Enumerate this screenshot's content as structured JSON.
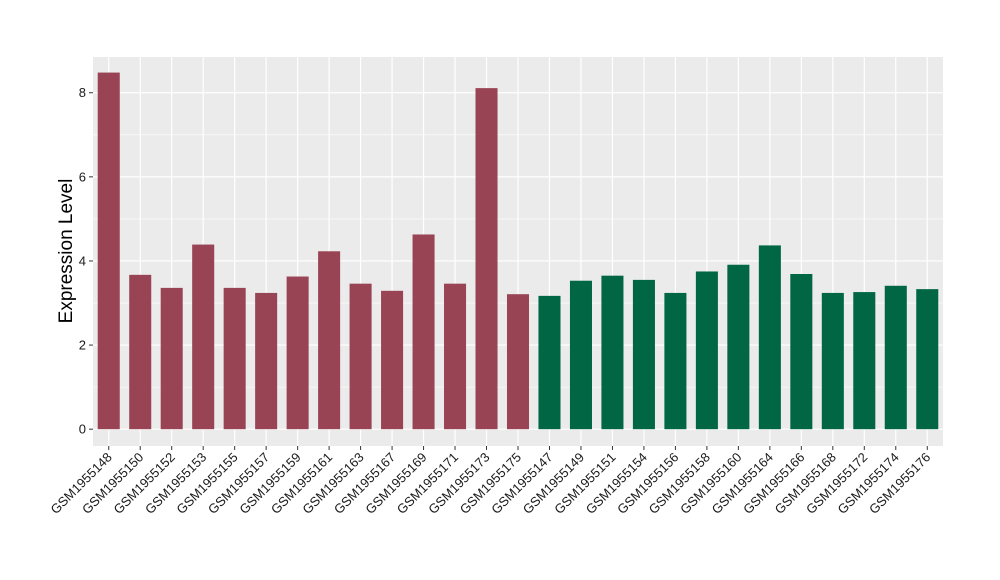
{
  "chart_data": {
    "type": "bar",
    "title": "",
    "xlabel": "",
    "ylabel": "Expression Level",
    "ylim": [
      -0.4,
      8.85
    ],
    "yticks": [
      0,
      2,
      4,
      6,
      8
    ],
    "grid": true,
    "legend": "none",
    "categories": [
      "GSM1955148",
      "GSM1955150",
      "GSM1955152",
      "GSM1955153",
      "GSM1955155",
      "GSM1955157",
      "GSM1955159",
      "GSM1955161",
      "GSM1955163",
      "GSM1955167",
      "GSM1955169",
      "GSM1955171",
      "GSM1955173",
      "GSM1955175",
      "GSM1955147",
      "GSM1955149",
      "GSM1955151",
      "GSM1955154",
      "GSM1955156",
      "GSM1955158",
      "GSM1955160",
      "GSM1955164",
      "GSM1955166",
      "GSM1955168",
      "GSM1955172",
      "GSM1955174",
      "GSM1955176"
    ],
    "values": [
      8.48,
      3.67,
      3.36,
      4.39,
      3.36,
      3.24,
      3.63,
      4.23,
      3.46,
      3.29,
      4.63,
      3.46,
      8.11,
      3.21,
      3.17,
      3.53,
      3.65,
      3.55,
      3.24,
      3.75,
      3.91,
      4.37,
      3.69,
      3.24,
      3.26,
      3.41,
      3.33
    ],
    "bar_groups": [
      0,
      0,
      0,
      0,
      0,
      0,
      0,
      0,
      0,
      0,
      0,
      0,
      0,
      0,
      1,
      1,
      1,
      1,
      1,
      1,
      1,
      1,
      1,
      1,
      1,
      1,
      1
    ],
    "colors": [
      "#994455",
      "#006644"
    ],
    "panel_background": "#EBEBEB",
    "grid_color": "#FFFFFF"
  }
}
